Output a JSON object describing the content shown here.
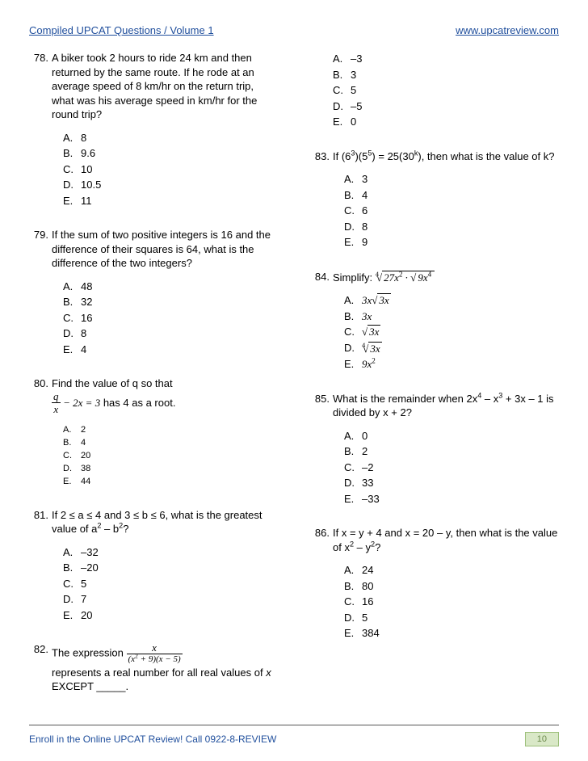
{
  "header": {
    "left": "Compiled UPCAT Questions / Volume 1",
    "right": "www.upcatreview.com"
  },
  "footer": {
    "left": "Enroll in the Online UPCAT Review! Call 0922-8-REVIEW",
    "page": "10"
  },
  "left": {
    "q78": {
      "num": "78.",
      "text": "A biker took 2 hours to ride 24 km and then returned by the same route. If he rode at an average speed of 8 km/hr on the return trip, what was his average speed in km/hr for the round trip?",
      "opts": {
        "A": "8",
        "B": "9.6",
        "C": "10",
        "D": "10.5",
        "E": "11"
      }
    },
    "q79": {
      "num": "79.",
      "text": "If the sum of two positive integers is 16 and the difference of their squares is 64, what is the difference of the two integers?",
      "opts": {
        "A": "48",
        "B": "32",
        "C": "16",
        "D": "8",
        "E": "4"
      }
    },
    "q80": {
      "num": "80.",
      "text1": "Find the value of q so that",
      "text2": " has 4 as a root.",
      "opts": {
        "A": "2",
        "B": "4",
        "C": "20",
        "D": "38",
        "E": "44"
      }
    },
    "q81": {
      "num": "81.",
      "text_pre": "If 2 ≤ a ≤ 4 and 3 ≤ b ≤ 6, what is the greatest value of a",
      "text_mid": " – b",
      "text_post": "?",
      "opts": {
        "A": "–32",
        "B": "–20",
        "C": "5",
        "D": "7",
        "E": "20"
      }
    },
    "q82": {
      "num": "82.",
      "text1": "The expression ",
      "text2_pre": "represents a real number for all real values of ",
      "text2_x": "x",
      "text2_post": " EXCEPT _____."
    }
  },
  "right": {
    "q82opts": {
      "A": "–3",
      "B": "3",
      "C": "5",
      "D": "–5",
      "E": "0"
    },
    "q83": {
      "num": "83.",
      "text_pre": "If (6",
      "text_mid1": ")(5",
      "text_mid2": ") = 25(30",
      "text_post": "), then what is the value of k?",
      "opts": {
        "A": "3",
        "B": "4",
        "C": "6",
        "D": "8",
        "E": "9"
      }
    },
    "q84": {
      "num": "84.",
      "text": "Simplify: "
    },
    "q85": {
      "num": "85.",
      "text_pre": "What is the remainder when 2x",
      "text_mid": " – x",
      "text_post": " + 3x – 1 is divided by x + 2?",
      "opts": {
        "A": "0",
        "B": "2",
        "C": "–2",
        "D": "33",
        "E": "–33"
      }
    },
    "q86": {
      "num": "86.",
      "text_pre": "If x = y + 4 and x = 20 – y, then what is the value of x",
      "text_mid": " – y",
      "text_post": "?",
      "opts": {
        "A": "24",
        "B": "80",
        "C": "16",
        "D": "5",
        "E": "384"
      }
    }
  },
  "letters": {
    "A": "A.",
    "B": "B.",
    "C": "C.",
    "D": "D.",
    "E": "E."
  }
}
